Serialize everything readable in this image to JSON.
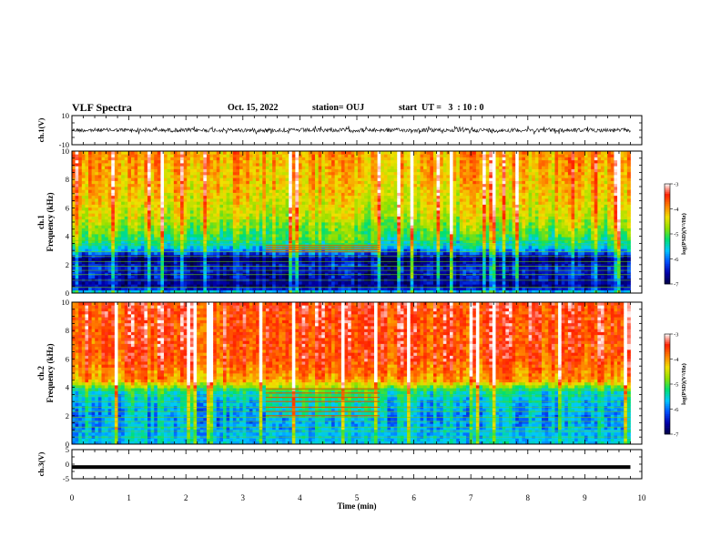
{
  "header": {
    "title": "VLF Spectra",
    "date": "Oct. 15, 2022",
    "station": "station= OUJ",
    "start": "start  UT =   3  : 10 : 0"
  },
  "colors": {
    "scale": [
      "#000044",
      "#0000aa",
      "#0050ff",
      "#00c8ff",
      "#00e070",
      "#90e000",
      "#f0e000",
      "#ff8000",
      "#ff2000",
      "#ffffff"
    ]
  },
  "chart_data": [
    {
      "type": "line",
      "id": "ch1-waveform",
      "ylabel": "ch.1(V)",
      "ylim": [
        -10,
        10
      ],
      "yticks": [
        "10",
        "-10"
      ],
      "xlim": [
        0,
        10
      ],
      "series": [
        {
          "x_range": [
            0,
            9.8
          ],
          "level": 0,
          "amplitude": 3
        }
      ]
    },
    {
      "type": "heatmap",
      "id": "ch1-spectrogram",
      "ylabel": "ch.1",
      "ylabel2": "Frequency  (kHz)",
      "ylim": [
        0,
        10
      ],
      "yticks": [
        "0",
        "2",
        "4",
        "6",
        "8",
        "10"
      ],
      "xlim": [
        0,
        10
      ],
      "data_x_range": [
        0,
        9.8
      ],
      "colorbar": {
        "label": "log(PSD)(V²/Hz)",
        "range": [
          -7,
          -3
        ],
        "ticks": [
          "-3",
          "-4",
          "-5",
          "-6",
          "-7"
        ]
      },
      "profile": [
        {
          "f": 0.0,
          "v": -5.3
        },
        {
          "f": 0.4,
          "v": -6.7
        },
        {
          "f": 1.8,
          "v": -6.4
        },
        {
          "f": 2.4,
          "v": -6.9
        },
        {
          "f": 3.2,
          "v": -5.6
        },
        {
          "f": 4.2,
          "v": -5.0
        },
        {
          "f": 5.5,
          "v": -4.5
        },
        {
          "f": 7.5,
          "v": -4.2
        },
        {
          "f": 10.0,
          "v": -4.0
        }
      ],
      "lines_khz": [
        0.4,
        0.9,
        1.3,
        1.6,
        1.9,
        2.2,
        2.6,
        2.9,
        3.4,
        3.7
      ],
      "event": {
        "t_range": [
          3.4,
          5.4
        ],
        "f_lines": [
          2.9,
          3.05,
          3.2,
          3.35
        ]
      }
    },
    {
      "type": "heatmap",
      "id": "ch2-spectrogram",
      "ylabel": "ch.2",
      "ylabel2": "Frequency  (kHz)",
      "ylim": [
        0,
        10
      ],
      "yticks": [
        "0",
        "2",
        "4",
        "6",
        "8",
        "10"
      ],
      "xlim": [
        0,
        10
      ],
      "data_x_range": [
        0,
        9.8
      ],
      "colorbar": {
        "label": "log(PSD)(V²/Hz)",
        "range": [
          -7,
          -3
        ],
        "ticks": [
          "-3",
          "-4",
          "-5",
          "-6",
          "-7"
        ]
      },
      "profile": [
        {
          "f": 0.0,
          "v": -5.6
        },
        {
          "f": 1.0,
          "v": -5.7
        },
        {
          "f": 2.0,
          "v": -5.8
        },
        {
          "f": 3.0,
          "v": -5.6
        },
        {
          "f": 3.8,
          "v": -5.3
        },
        {
          "f": 4.5,
          "v": -4.0
        },
        {
          "f": 6.0,
          "v": -3.6
        },
        {
          "f": 10.0,
          "v": -3.5
        }
      ],
      "lines_khz": [
        0.5,
        0.9,
        1.2,
        1.6,
        1.9,
        2.3,
        2.6,
        3.0,
        3.4,
        3.8
      ],
      "event": {
        "t_range": [
          3.4,
          5.4
        ],
        "f_lines": [
          2.0,
          2.3,
          2.6,
          3.0,
          3.3,
          3.6,
          3.9
        ]
      }
    },
    {
      "type": "line",
      "id": "ch3-waveform",
      "ylabel": "ch.3(V)",
      "ylim": [
        -5,
        5
      ],
      "yticks": [
        "5",
        "0",
        "-5"
      ],
      "xlim": [
        0,
        10
      ],
      "xlabel": "Time  (min)",
      "xticks": [
        "0",
        "1",
        "2",
        "3",
        "4",
        "5",
        "6",
        "7",
        "8",
        "9",
        "10"
      ],
      "series": [
        {
          "x_range": [
            0,
            9.8
          ],
          "level": -1,
          "amplitude": 0.3
        }
      ]
    }
  ]
}
